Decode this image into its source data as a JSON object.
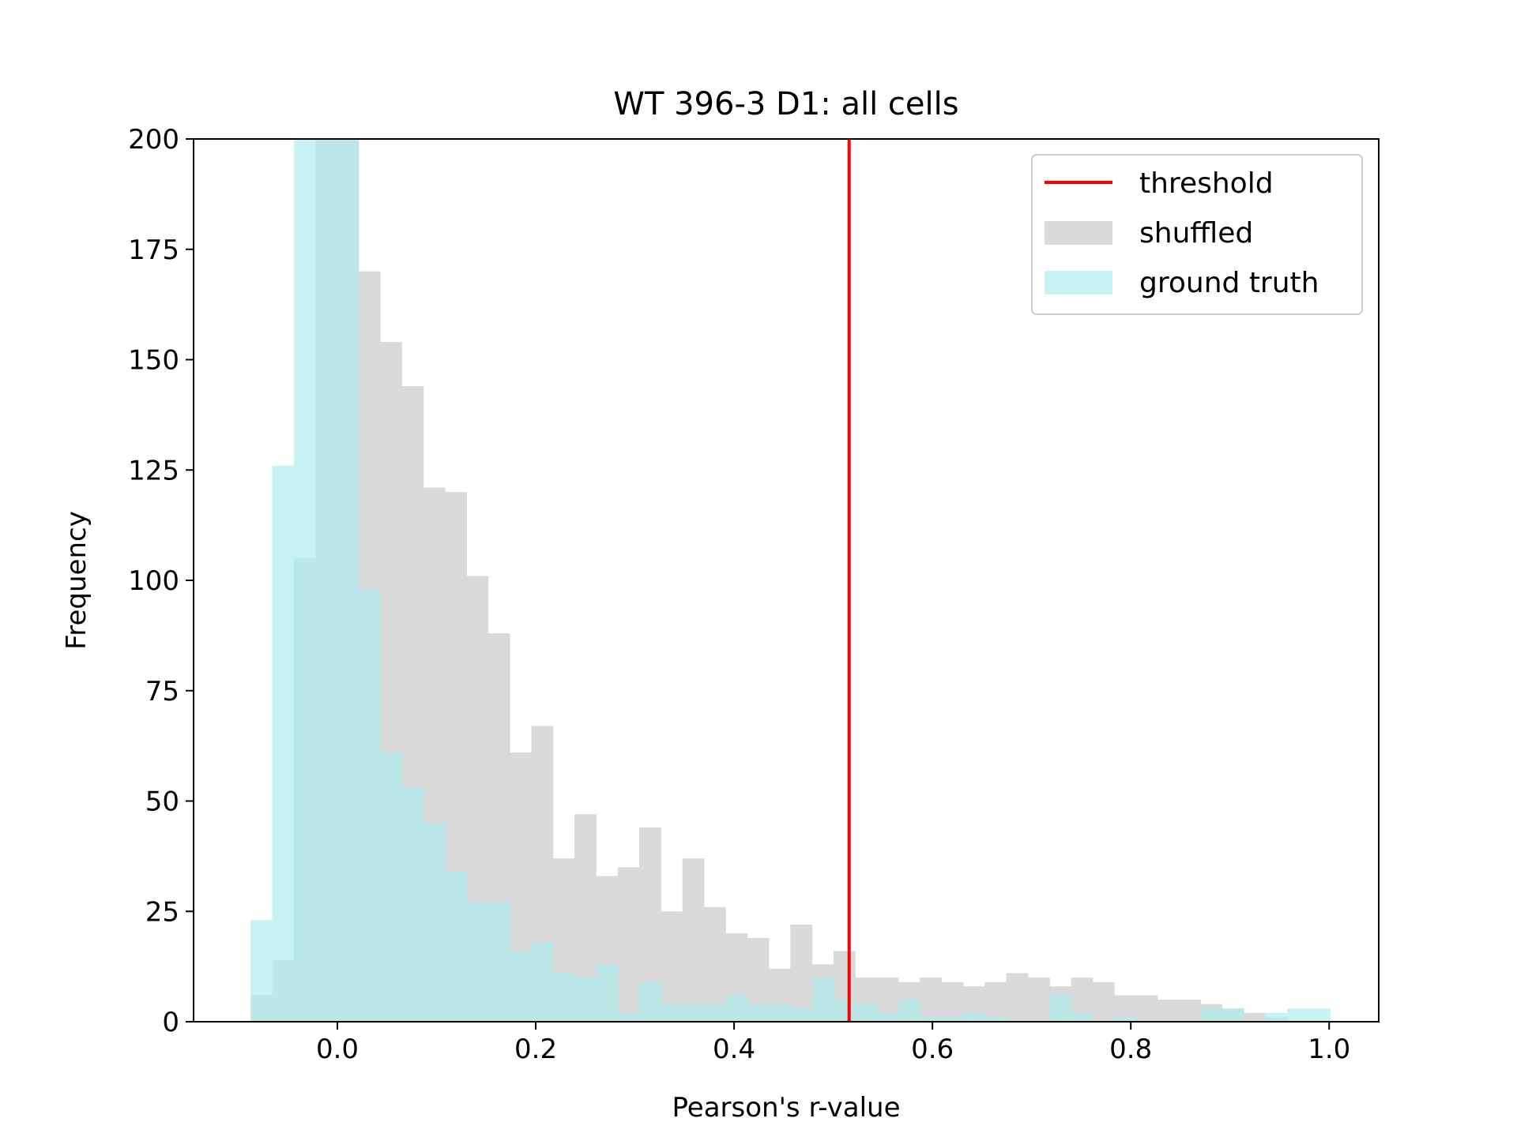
{
  "chart_data": {
    "type": "bar",
    "title": "WT 396-3 D1: all cells",
    "xlabel": "Pearson's r-value",
    "ylabel": "Frequency",
    "xlim": [
      -0.145,
      1.05
    ],
    "ylim": [
      0,
      200
    ],
    "xticks": [
      "0.0",
      "0.2",
      "0.4",
      "0.6",
      "0.8",
      "1.0"
    ],
    "yticks": [
      "0",
      "25",
      "50",
      "75",
      "100",
      "125",
      "150",
      "175",
      "200"
    ],
    "bin_start": -0.0875,
    "bin_width": 0.02177,
    "threshold": 0.516,
    "legend_position": "top-right",
    "series": [
      {
        "name": "shuffled",
        "color": "#d3d3d3",
        "values": [
          6,
          14,
          105,
          200,
          200,
          170,
          154,
          144,
          121,
          120,
          101,
          88,
          61,
          67,
          37,
          47,
          33,
          35,
          44,
          25,
          37,
          26,
          20,
          19,
          12,
          22,
          13,
          16,
          10,
          10,
          9,
          10,
          9,
          8,
          9,
          11,
          10,
          8,
          10,
          9,
          6,
          6,
          5,
          5,
          4,
          3,
          2,
          1
        ]
      },
      {
        "name": "ground truth",
        "color": "#afeeee",
        "values": [
          23,
          126,
          200,
          200,
          200,
          98,
          61,
          53,
          45,
          34,
          27,
          27,
          16,
          18,
          11,
          10,
          13,
          2,
          9,
          4,
          4,
          4,
          6,
          4,
          4,
          3,
          10,
          5,
          4,
          2,
          5,
          1,
          1,
          2,
          1,
          0,
          0,
          6,
          2,
          0,
          1,
          0,
          0,
          0,
          3,
          3,
          0,
          2,
          3,
          3
        ]
      }
    ],
    "legend": {
      "threshold_label": "threshold",
      "shuffled_label": "shuffled",
      "ground_truth_label": "ground truth",
      "threshold_color": "#ff0000"
    }
  }
}
